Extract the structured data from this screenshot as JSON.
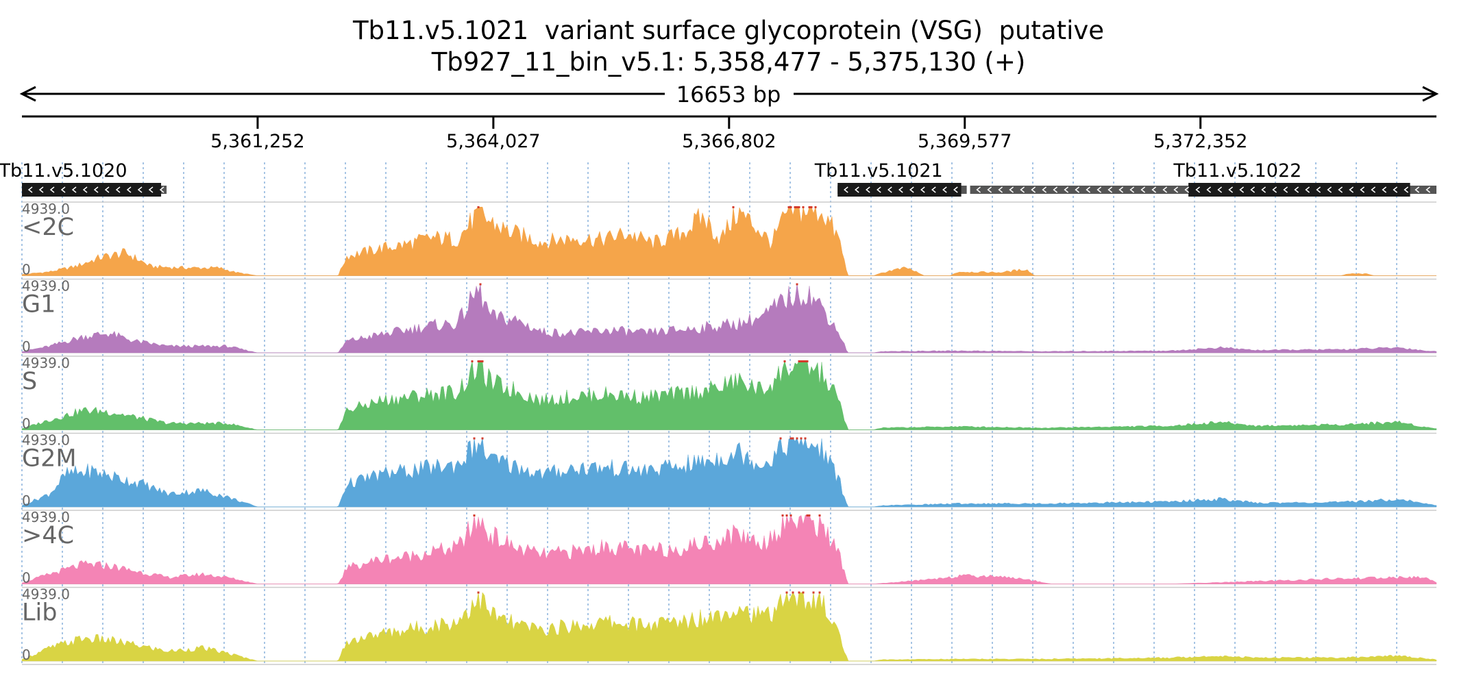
{
  "chart_data": {
    "type": "area",
    "title": "Tb11.v5.1021  variant surface glycoprotein (VSG)  putative",
    "subtitle": "Tb927_11_bin_v5.1: 5,358,477 - 5,375,130 (+)",
    "span_label": "16653 bp",
    "x_range": [
      5358477,
      5375130
    ],
    "x_ticks": [
      5361252,
      5364027,
      5366802,
      5369577,
      5372352
    ],
    "x_tick_labels": [
      "5,361,252",
      "5,364,027",
      "5,366,802",
      "5,369,577",
      "5,372,352"
    ],
    "grid": "vertical dotted",
    "genes": [
      {
        "name": "Tb11.v5.1020",
        "start": 5358477,
        "end": 5360180,
        "strand": "-",
        "label": "Tb11.v5.1020"
      },
      {
        "name": "Tb11.v5.1021",
        "start": 5368080,
        "end": 5369600,
        "strand": "-",
        "label": "Tb11.v5.1021"
      },
      {
        "name": "Tb11.v5.1022",
        "start": 5369640,
        "end": 5375130,
        "strand": "-",
        "label": "Tb11.v5.1022",
        "cds_start": 5372210,
        "cds_end": 5374820
      }
    ],
    "tracks": [
      {
        "name": "<2C",
        "max_label": "4939.0",
        "min_label": "0",
        "color": "#f5a54a",
        "profile": [
          [
            5358477,
            0.02
          ],
          [
            5358800,
            0.06
          ],
          [
            5359100,
            0.14
          ],
          [
            5359400,
            0.28
          ],
          [
            5359700,
            0.35
          ],
          [
            5360000,
            0.14
          ],
          [
            5360400,
            0.12
          ],
          [
            5360800,
            0.12
          ],
          [
            5361000,
            0.05
          ],
          [
            5361252,
            0.0
          ],
          [
            5362200,
            0.0
          ],
          [
            5362300,
            0.3
          ],
          [
            5362700,
            0.42
          ],
          [
            5363000,
            0.48
          ],
          [
            5363300,
            0.58
          ],
          [
            5363600,
            0.56
          ],
          [
            5363850,
            0.95
          ],
          [
            5364000,
            0.82
          ],
          [
            5364200,
            0.68
          ],
          [
            5364600,
            0.52
          ],
          [
            5365000,
            0.58
          ],
          [
            5365300,
            0.55
          ],
          [
            5365600,
            0.65
          ],
          [
            5365900,
            0.5
          ],
          [
            5366200,
            0.62
          ],
          [
            5366500,
            0.9
          ],
          [
            5366700,
            0.55
          ],
          [
            5366900,
            0.98
          ],
          [
            5367100,
            0.78
          ],
          [
            5367300,
            0.5
          ],
          [
            5367500,
            1.0
          ],
          [
            5367900,
            1.0
          ],
          [
            5368100,
            0.55
          ],
          [
            5368200,
            0.0
          ],
          [
            5368500,
            0.0
          ],
          [
            5368700,
            0.08
          ],
          [
            5368900,
            0.12
          ],
          [
            5369100,
            0.0
          ],
          [
            5369400,
            0.0
          ],
          [
            5369500,
            0.06
          ],
          [
            5370000,
            0.05
          ],
          [
            5370300,
            0.1
          ],
          [
            5370400,
            0.0
          ],
          [
            5374000,
            0.0
          ],
          [
            5374100,
            0.03
          ],
          [
            5374300,
            0.03
          ],
          [
            5374400,
            0.0
          ],
          [
            5375130,
            0.0
          ]
        ]
      },
      {
        "name": "G1",
        "max_label": "4939.0",
        "min_label": "0",
        "color": "#b57bbd",
        "profile": [
          [
            5358477,
            0.02
          ],
          [
            5358800,
            0.1
          ],
          [
            5359200,
            0.25
          ],
          [
            5359500,
            0.3
          ],
          [
            5359800,
            0.18
          ],
          [
            5360200,
            0.1
          ],
          [
            5360600,
            0.1
          ],
          [
            5360900,
            0.1
          ],
          [
            5361252,
            0.0
          ],
          [
            5362200,
            0.0
          ],
          [
            5362300,
            0.18
          ],
          [
            5362700,
            0.28
          ],
          [
            5363000,
            0.35
          ],
          [
            5363300,
            0.42
          ],
          [
            5363600,
            0.45
          ],
          [
            5363850,
            0.97
          ],
          [
            5364000,
            0.55
          ],
          [
            5364300,
            0.5
          ],
          [
            5364600,
            0.32
          ],
          [
            5365000,
            0.3
          ],
          [
            5365400,
            0.35
          ],
          [
            5365800,
            0.3
          ],
          [
            5366200,
            0.35
          ],
          [
            5366600,
            0.4
          ],
          [
            5366900,
            0.45
          ],
          [
            5367200,
            0.55
          ],
          [
            5367500,
            0.85
          ],
          [
            5367700,
            0.95
          ],
          [
            5367900,
            0.7
          ],
          [
            5368100,
            0.3
          ],
          [
            5368200,
            0.0
          ],
          [
            5368500,
            0.0
          ],
          [
            5368600,
            0.02
          ],
          [
            5369500,
            0.03
          ],
          [
            5370500,
            0.02
          ],
          [
            5372000,
            0.03
          ],
          [
            5372600,
            0.08
          ],
          [
            5373000,
            0.04
          ],
          [
            5374000,
            0.05
          ],
          [
            5374700,
            0.08
          ],
          [
            5375000,
            0.03
          ],
          [
            5375130,
            0.02
          ]
        ]
      },
      {
        "name": "S",
        "max_label": "4939.0",
        "min_label": "0",
        "color": "#62bf6a",
        "profile": [
          [
            5358477,
            0.02
          ],
          [
            5358800,
            0.15
          ],
          [
            5359200,
            0.3
          ],
          [
            5359500,
            0.28
          ],
          [
            5359800,
            0.2
          ],
          [
            5360200,
            0.1
          ],
          [
            5360600,
            0.1
          ],
          [
            5360900,
            0.1
          ],
          [
            5361252,
            0.0
          ],
          [
            5362200,
            0.0
          ],
          [
            5362300,
            0.3
          ],
          [
            5362700,
            0.45
          ],
          [
            5363000,
            0.5
          ],
          [
            5363300,
            0.55
          ],
          [
            5363600,
            0.58
          ],
          [
            5363850,
            1.0
          ],
          [
            5364000,
            0.72
          ],
          [
            5364300,
            0.6
          ],
          [
            5364600,
            0.45
          ],
          [
            5365000,
            0.52
          ],
          [
            5365400,
            0.55
          ],
          [
            5365800,
            0.5
          ],
          [
            5366200,
            0.55
          ],
          [
            5366600,
            0.62
          ],
          [
            5366900,
            0.75
          ],
          [
            5367200,
            0.6
          ],
          [
            5367500,
            0.98
          ],
          [
            5367700,
            1.0
          ],
          [
            5367900,
            0.85
          ],
          [
            5368100,
            0.45
          ],
          [
            5368200,
            0.0
          ],
          [
            5368500,
            0.0
          ],
          [
            5368600,
            0.03
          ],
          [
            5369500,
            0.05
          ],
          [
            5370500,
            0.03
          ],
          [
            5372000,
            0.06
          ],
          [
            5372600,
            0.12
          ],
          [
            5373000,
            0.06
          ],
          [
            5374000,
            0.08
          ],
          [
            5374700,
            0.12
          ],
          [
            5375000,
            0.04
          ],
          [
            5375130,
            0.02
          ]
        ]
      },
      {
        "name": "G2M",
        "max_label": "4939.0",
        "min_label": "0",
        "color": "#5ba7da",
        "profile": [
          [
            5358477,
            0.02
          ],
          [
            5358800,
            0.2
          ],
          [
            5359000,
            0.5
          ],
          [
            5359300,
            0.55
          ],
          [
            5359600,
            0.45
          ],
          [
            5359900,
            0.35
          ],
          [
            5360200,
            0.2
          ],
          [
            5360600,
            0.25
          ],
          [
            5360900,
            0.15
          ],
          [
            5361252,
            0.0
          ],
          [
            5362200,
            0.0
          ],
          [
            5362300,
            0.35
          ],
          [
            5362700,
            0.5
          ],
          [
            5363000,
            0.55
          ],
          [
            5363300,
            0.6
          ],
          [
            5363600,
            0.65
          ],
          [
            5363850,
            1.0
          ],
          [
            5364000,
            0.72
          ],
          [
            5364300,
            0.62
          ],
          [
            5364600,
            0.5
          ],
          [
            5365000,
            0.6
          ],
          [
            5365400,
            0.6
          ],
          [
            5365800,
            0.55
          ],
          [
            5366200,
            0.62
          ],
          [
            5366600,
            0.72
          ],
          [
            5366900,
            0.85
          ],
          [
            5367200,
            0.65
          ],
          [
            5367500,
            1.0
          ],
          [
            5367700,
            1.0
          ],
          [
            5367900,
            0.88
          ],
          [
            5368100,
            0.4
          ],
          [
            5368200,
            0.0
          ],
          [
            5368500,
            0.0
          ],
          [
            5368600,
            0.02
          ],
          [
            5369500,
            0.05
          ],
          [
            5370500,
            0.05
          ],
          [
            5372000,
            0.08
          ],
          [
            5372600,
            0.12
          ],
          [
            5373000,
            0.06
          ],
          [
            5374000,
            0.07
          ],
          [
            5374700,
            0.12
          ],
          [
            5375000,
            0.05
          ],
          [
            5375130,
            0.02
          ]
        ]
      },
      {
        "name": ">4C",
        "max_label": "4939.0",
        "min_label": "0",
        "color": "#f484b5",
        "profile": [
          [
            5358477,
            0.02
          ],
          [
            5358800,
            0.15
          ],
          [
            5359200,
            0.3
          ],
          [
            5359500,
            0.28
          ],
          [
            5359800,
            0.2
          ],
          [
            5360200,
            0.1
          ],
          [
            5360600,
            0.15
          ],
          [
            5360900,
            0.1
          ],
          [
            5361252,
            0.0
          ],
          [
            5362200,
            0.0
          ],
          [
            5362300,
            0.25
          ],
          [
            5362700,
            0.38
          ],
          [
            5363000,
            0.42
          ],
          [
            5363300,
            0.5
          ],
          [
            5363600,
            0.55
          ],
          [
            5363850,
            1.0
          ],
          [
            5364000,
            0.75
          ],
          [
            5364300,
            0.55
          ],
          [
            5364600,
            0.45
          ],
          [
            5365000,
            0.5
          ],
          [
            5365400,
            0.58
          ],
          [
            5365800,
            0.5
          ],
          [
            5366200,
            0.55
          ],
          [
            5366600,
            0.65
          ],
          [
            5366900,
            0.78
          ],
          [
            5367200,
            0.62
          ],
          [
            5367500,
            1.0
          ],
          [
            5367700,
            1.0
          ],
          [
            5367900,
            0.9
          ],
          [
            5368100,
            0.45
          ],
          [
            5368200,
            0.0
          ],
          [
            5368500,
            0.0
          ],
          [
            5369000,
            0.05
          ],
          [
            5369500,
            0.12
          ],
          [
            5370000,
            0.12
          ],
          [
            5370400,
            0.05
          ],
          [
            5370600,
            0.0
          ],
          [
            5372000,
            0.0
          ],
          [
            5374000,
            0.08
          ],
          [
            5374700,
            0.1
          ],
          [
            5375000,
            0.1
          ],
          [
            5375130,
            0.02
          ]
        ]
      },
      {
        "name": "Lib",
        "max_label": "4939.0",
        "min_label": "0",
        "color": "#d9d444",
        "profile": [
          [
            5358477,
            0.02
          ],
          [
            5358800,
            0.2
          ],
          [
            5359200,
            0.35
          ],
          [
            5359500,
            0.32
          ],
          [
            5359800,
            0.25
          ],
          [
            5360200,
            0.15
          ],
          [
            5360600,
            0.2
          ],
          [
            5360900,
            0.12
          ],
          [
            5361252,
            0.0
          ],
          [
            5362200,
            0.0
          ],
          [
            5362300,
            0.3
          ],
          [
            5362700,
            0.42
          ],
          [
            5363000,
            0.48
          ],
          [
            5363300,
            0.55
          ],
          [
            5363600,
            0.6
          ],
          [
            5363850,
            1.0
          ],
          [
            5364000,
            0.72
          ],
          [
            5364300,
            0.55
          ],
          [
            5364600,
            0.48
          ],
          [
            5365000,
            0.55
          ],
          [
            5365400,
            0.6
          ],
          [
            5365800,
            0.55
          ],
          [
            5366200,
            0.6
          ],
          [
            5366600,
            0.7
          ],
          [
            5366900,
            0.85
          ],
          [
            5367200,
            0.65
          ],
          [
            5367500,
            1.0
          ],
          [
            5367700,
            1.0
          ],
          [
            5367900,
            0.9
          ],
          [
            5368100,
            0.4
          ],
          [
            5368200,
            0.0
          ],
          [
            5368500,
            0.0
          ],
          [
            5368600,
            0.02
          ],
          [
            5369500,
            0.03
          ],
          [
            5370500,
            0.03
          ],
          [
            5372000,
            0.05
          ],
          [
            5372600,
            0.08
          ],
          [
            5373000,
            0.05
          ],
          [
            5374000,
            0.05
          ],
          [
            5374700,
            0.08
          ],
          [
            5375000,
            0.04
          ],
          [
            5375130,
            0.02
          ]
        ]
      }
    ]
  }
}
